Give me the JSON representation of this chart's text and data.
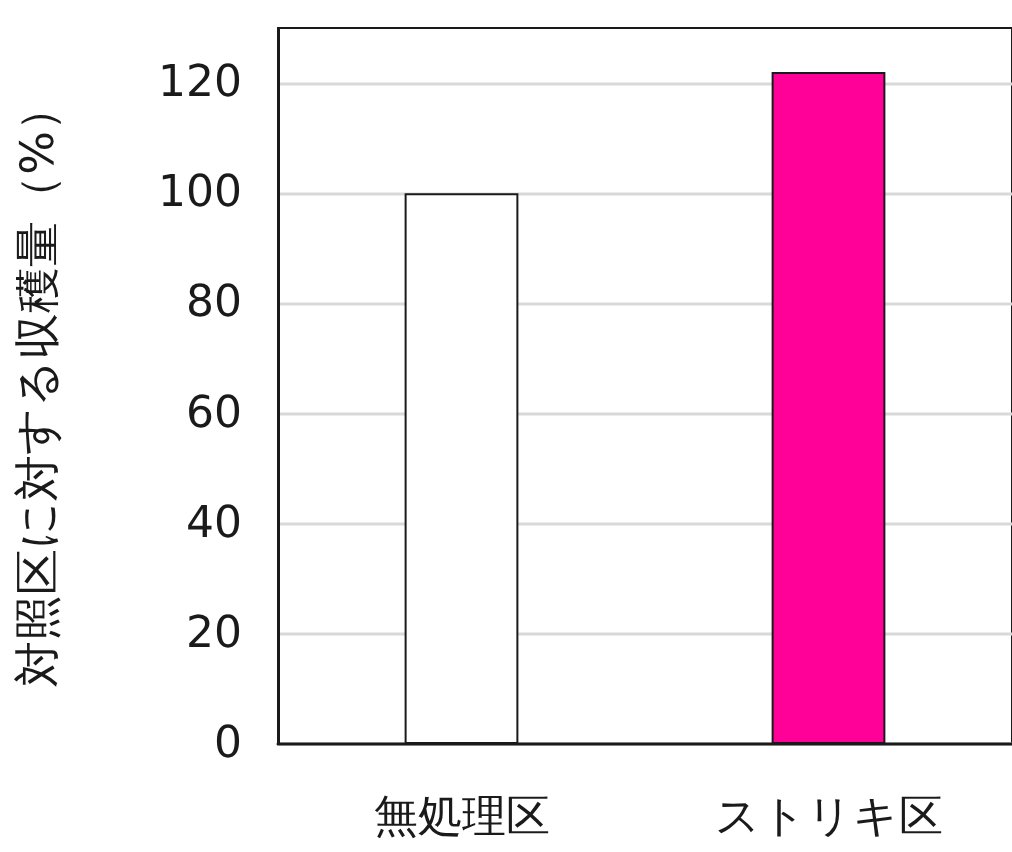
{
  "chart_data": {
    "type": "bar",
    "ylabel": "対照区に対する収穫量（%）",
    "categories": [
      "無処理区",
      "ストリキ区"
    ],
    "values": [
      100,
      122
    ],
    "colors": [
      "#ffffff",
      "#ff0099"
    ],
    "ylim": [
      0,
      130
    ],
    "yticks": [
      0,
      20,
      40,
      60,
      80,
      100,
      120
    ],
    "grid": "y"
  }
}
